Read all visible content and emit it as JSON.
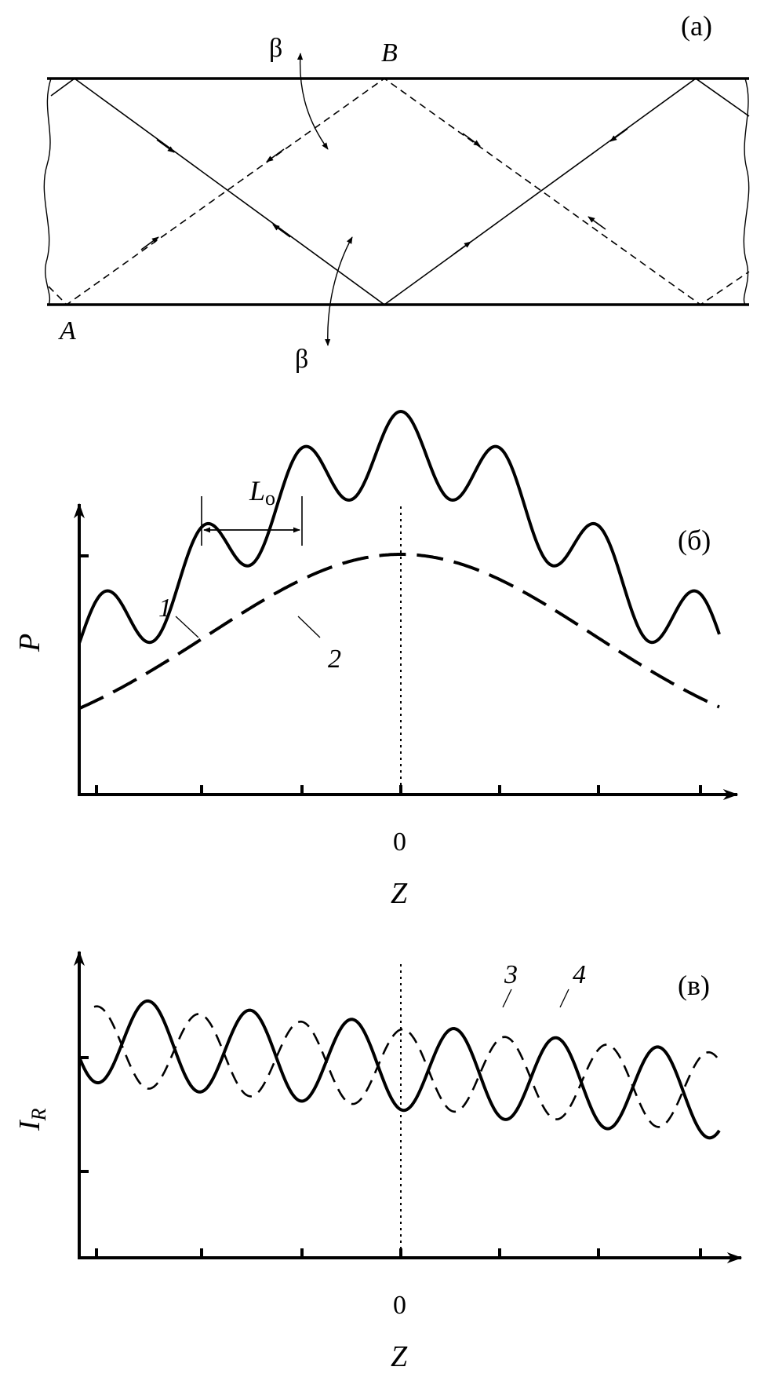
{
  "panel_a": {
    "tag": "(a)",
    "point_a": "A",
    "point_b": "B",
    "angle_top": "β",
    "angle_bottom": "β"
  },
  "panel_b": {
    "tag": "(б)",
    "y_label": "P",
    "x_label": "Z",
    "x_zero": "0",
    "period_label": "L",
    "period_sub": "o",
    "curve1_label": "1",
    "curve2_label": "2"
  },
  "panel_c": {
    "tag": "(в)",
    "y_label": "I",
    "y_sub": "R",
    "x_label": "Z",
    "x_zero": "0",
    "curve3_label": "3",
    "curve4_label": "4"
  },
  "colors": {
    "ink": "#000000",
    "paper": "#ffffff"
  }
}
